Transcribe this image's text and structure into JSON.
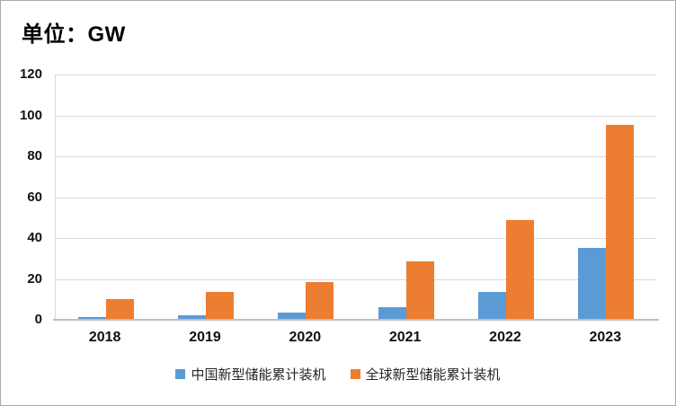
{
  "title": "单位：GW",
  "chart_data": {
    "type": "bar",
    "categories": [
      "2018",
      "2019",
      "2020",
      "2021",
      "2022",
      "2023"
    ],
    "series": [
      {
        "name": "中国新型储能累计装机",
        "color": "#5B9BD5",
        "values": [
          1.5,
          2.2,
          3.5,
          6.3,
          13.8,
          35.0
        ]
      },
      {
        "name": "全球新型储能累计装机",
        "color": "#ED7D31",
        "values": [
          10.3,
          13.8,
          18.5,
          28.7,
          48.9,
          95.5
        ]
      }
    ],
    "xlabel": "",
    "ylabel": "",
    "ylim": [
      0,
      120
    ],
    "yticks": [
      0,
      20,
      40,
      60,
      80,
      100,
      120
    ],
    "grid": true,
    "legend_position": "bottom"
  },
  "colors": {
    "gridline": "#D9D9D9",
    "axis_line": "#BFBFBF",
    "frame_border": "#ABABAB",
    "text": "#111111",
    "background": "#FFFFFF"
  }
}
